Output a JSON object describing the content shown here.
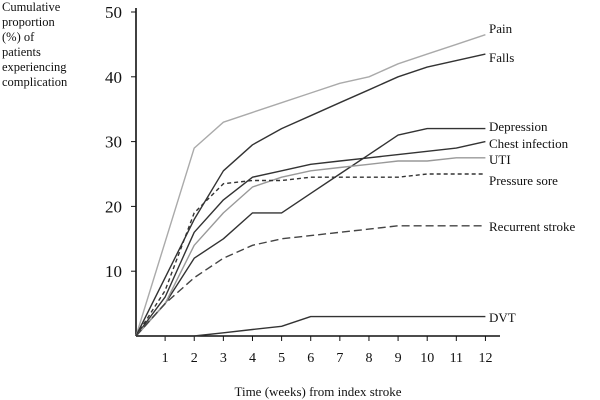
{
  "chart_data": {
    "type": "line",
    "ylabel_lines": [
      "Cumulative",
      "proportion",
      "(%) of",
      "patients",
      "experiencing",
      "complication"
    ],
    "xlabel": "Time (weeks) from index stroke",
    "x_ticks": [
      1,
      2,
      3,
      4,
      5,
      6,
      7,
      8,
      9,
      10,
      11,
      12
    ],
    "y_ticks": [
      10,
      20,
      30,
      40,
      50
    ],
    "xlim": [
      0,
      12.5
    ],
    "ylim": [
      0,
      50
    ],
    "grid": false,
    "series": [
      {
        "name": "Pain",
        "color": "#aaaaaa",
        "dash": "",
        "points": [
          [
            0,
            0
          ],
          [
            2,
            29
          ],
          [
            3,
            33
          ],
          [
            4,
            34.5
          ],
          [
            5,
            36
          ],
          [
            6,
            37.5
          ],
          [
            7,
            39
          ],
          [
            8,
            40
          ],
          [
            9,
            42
          ],
          [
            10,
            43.5
          ],
          [
            11,
            45
          ],
          [
            12,
            46.5
          ]
        ]
      },
      {
        "name": "Falls",
        "color": "#333333",
        "dash": "",
        "points": [
          [
            0,
            0
          ],
          [
            2,
            18
          ],
          [
            3,
            25.5
          ],
          [
            4,
            29.5
          ],
          [
            5,
            32
          ],
          [
            6,
            34
          ],
          [
            7,
            36
          ],
          [
            8,
            38
          ],
          [
            9,
            40
          ],
          [
            10,
            41.5
          ],
          [
            11,
            42.5
          ],
          [
            12,
            43.5
          ]
        ]
      },
      {
        "name": "Depression",
        "color": "#333333",
        "dash": "",
        "points": [
          [
            0,
            0
          ],
          [
            1,
            5
          ],
          [
            2,
            12
          ],
          [
            3,
            15
          ],
          [
            4,
            19
          ],
          [
            5,
            19
          ],
          [
            6,
            22
          ],
          [
            7,
            25
          ],
          [
            8,
            28
          ],
          [
            9,
            31
          ],
          [
            10,
            32
          ],
          [
            11,
            32
          ],
          [
            12,
            32
          ]
        ]
      },
      {
        "name": "Chest infection",
        "color": "#333333",
        "dash": "",
        "points": [
          [
            0,
            0
          ],
          [
            1,
            6
          ],
          [
            2,
            16
          ],
          [
            3,
            21
          ],
          [
            4,
            24.5
          ],
          [
            5,
            25.5
          ],
          [
            6,
            26.5
          ],
          [
            7,
            27
          ],
          [
            8,
            27.5
          ],
          [
            9,
            28
          ],
          [
            10,
            28.5
          ],
          [
            11,
            29
          ],
          [
            12,
            30
          ]
        ]
      },
      {
        "name": "UTI",
        "color": "#999999",
        "dash": "",
        "points": [
          [
            0,
            0
          ],
          [
            1,
            5
          ],
          [
            2,
            14
          ],
          [
            3,
            19
          ],
          [
            4,
            23
          ],
          [
            5,
            24.5
          ],
          [
            6,
            25.5
          ],
          [
            7,
            26
          ],
          [
            8,
            26.5
          ],
          [
            9,
            27
          ],
          [
            10,
            27
          ],
          [
            11,
            27.5
          ],
          [
            12,
            27.5
          ]
        ]
      },
      {
        "name": "Pressure sore",
        "color": "#333333",
        "dash": "4,3",
        "points": [
          [
            0,
            0
          ],
          [
            1,
            7
          ],
          [
            2,
            19
          ],
          [
            3,
            23.5
          ],
          [
            4,
            24
          ],
          [
            5,
            24
          ],
          [
            6,
            24.5
          ],
          [
            7,
            24.5
          ],
          [
            8,
            24.5
          ],
          [
            9,
            24.5
          ],
          [
            10,
            25
          ],
          [
            11,
            25
          ],
          [
            12,
            25
          ]
        ]
      },
      {
        "name": "Recurrent stroke",
        "color": "#444444",
        "dash": "8,4",
        "points": [
          [
            0,
            0
          ],
          [
            1,
            5
          ],
          [
            2,
            9
          ],
          [
            3,
            12
          ],
          [
            4,
            14
          ],
          [
            5,
            15
          ],
          [
            6,
            15.5
          ],
          [
            7,
            16
          ],
          [
            8,
            16.5
          ],
          [
            9,
            17
          ],
          [
            10,
            17
          ],
          [
            11,
            17
          ],
          [
            12,
            17
          ]
        ]
      },
      {
        "name": "DVT",
        "color": "#333333",
        "dash": "",
        "points": [
          [
            0,
            0
          ],
          [
            2,
            0
          ],
          [
            3,
            0.5
          ],
          [
            4,
            1
          ],
          [
            5,
            1.5
          ],
          [
            6,
            3
          ],
          [
            7,
            3
          ],
          [
            8,
            3
          ],
          [
            9,
            3
          ],
          [
            10,
            3
          ],
          [
            11,
            3
          ],
          [
            12,
            3
          ]
        ]
      }
    ],
    "labels": [
      {
        "text": "Pain",
        "series": "Pain"
      },
      {
        "text": "Falls",
        "series": "Falls"
      },
      {
        "text": "Depression",
        "series": "Depression"
      },
      {
        "text": "Chest infection",
        "series": "Chest infection"
      },
      {
        "text": "UTI",
        "series": "UTI"
      },
      {
        "text": "Pressure sore",
        "series": "Pressure sore"
      },
      {
        "text": "Recurrent stroke",
        "series": "Recurrent stroke"
      },
      {
        "text": "DVT",
        "series": "DVT"
      }
    ]
  }
}
